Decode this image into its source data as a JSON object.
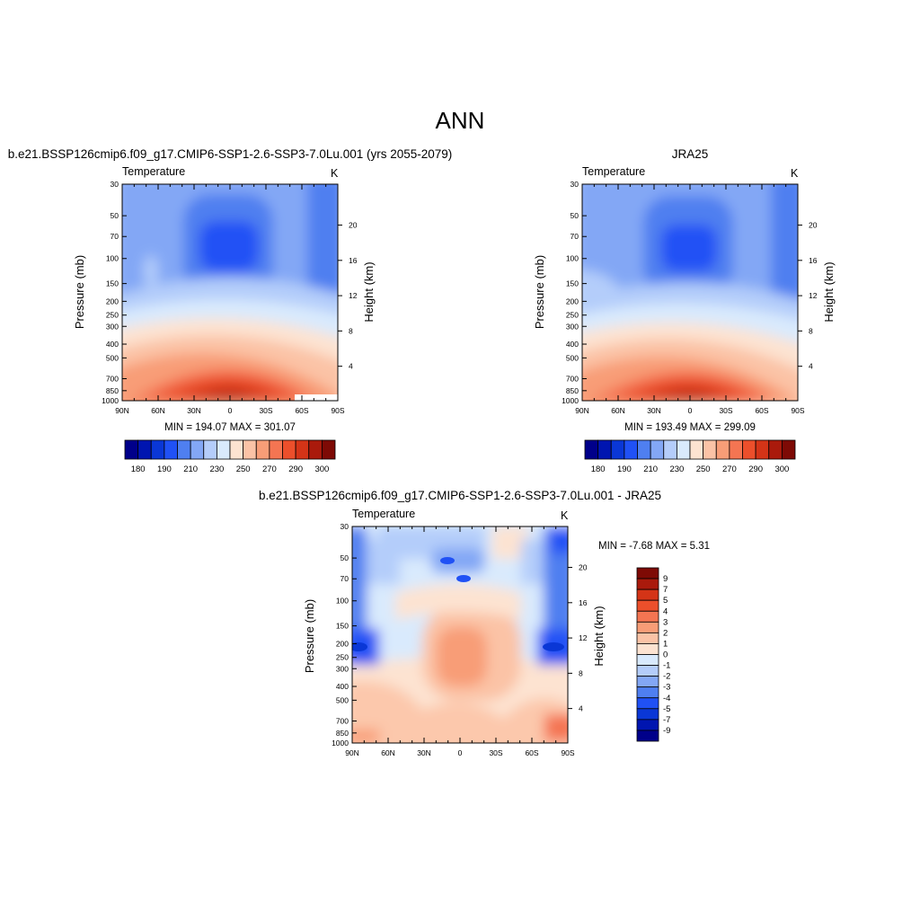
{
  "page": {
    "title": "ANN"
  },
  "panels": [
    {
      "title": "b.e21.BSSP126cmip6.f09_g17.CMIP6-SSP1-2.6-SSP3-7.0Lu.001 (yrs 2055-2079)",
      "variable": "Temperature",
      "units": "K",
      "stats": "MIN = 194.07  MAX = 301.07"
    },
    {
      "title": "JRA25",
      "variable": "Temperature",
      "units": "K",
      "stats": "MIN = 193.49  MAX = 299.09"
    },
    {
      "title": "b.e21.BSSP126cmip6.f09_g17.CMIP6-SSP1-2.6-SSP3-7.0Lu.001 - JRA25",
      "variable": "Temperature",
      "units": "K",
      "stats": "MIN =  -7.68  MAX =   5.31"
    }
  ],
  "axes": {
    "ylabel": "Pressure (mb)",
    "ylabel_right": "Height (km)",
    "pressure_ticks": [
      "30",
      "50",
      "70",
      "100",
      "150",
      "200",
      "250",
      "300",
      "400",
      "500",
      "700",
      "850",
      "1000"
    ],
    "height_ticks": [
      "20",
      "16",
      "12",
      "8",
      "4"
    ],
    "lat_ticks": [
      "90N",
      "60N",
      "30N",
      "0",
      "30S",
      "60S",
      "90S"
    ]
  },
  "colorbars": {
    "temperature_labels": [
      "180",
      "190",
      "210",
      "230",
      "250",
      "270",
      "290",
      "300"
    ],
    "difference_labels": [
      "9",
      "7",
      "5",
      "4",
      "3",
      "2",
      "1",
      "0",
      "-1",
      "-2",
      "-3",
      "-4",
      "-5",
      "-7",
      "-9"
    ]
  },
  "colors": {
    "temperature_scale": [
      "#00008a",
      "#0015b0",
      "#0a37d6",
      "#2051f5",
      "#4f7ff0",
      "#83a7f5",
      "#b4cdfa",
      "#d9eafd",
      "#fde3d1",
      "#fbc3a6",
      "#f89d77",
      "#f47552",
      "#ec4f2b",
      "#d43417",
      "#aa1a0c",
      "#7e0a05"
    ],
    "difference_scale": [
      "#7e0a05",
      "#aa1a0c",
      "#d43417",
      "#ec4f2b",
      "#f47552",
      "#f89d77",
      "#fbc3a6",
      "#fde3d1",
      "#d9eafd",
      "#b4cdfa",
      "#83a7f5",
      "#4f7ff0",
      "#2051f5",
      "#0a37d6",
      "#0015b0",
      "#00008a"
    ]
  },
  "chart_data": [
    {
      "type": "heatmap",
      "title": "b.e21.BSSP126cmip6.f09_g17.CMIP6-SSP1-2.6-SSP3-7.0Lu.001 (yrs 2055-2079)",
      "subtitle": "Temperature",
      "units": "K",
      "xlabel": "",
      "ylabel": "Pressure (mb)",
      "ylabel_right": "Height (km)",
      "x": [
        "90N",
        "60N",
        "30N",
        "0",
        "30S",
        "60S",
        "90S"
      ],
      "y": [
        30,
        50,
        70,
        100,
        150,
        200,
        250,
        300,
        400,
        500,
        700,
        850,
        1000
      ],
      "y_scale": "log",
      "min": 194.07,
      "max": 301.07
    },
    {
      "type": "heatmap",
      "title": "JRA25",
      "subtitle": "Temperature",
      "units": "K",
      "xlabel": "",
      "ylabel": "Pressure (mb)",
      "ylabel_right": "Height (km)",
      "x": [
        "90N",
        "60N",
        "30N",
        "0",
        "30S",
        "60S",
        "90S"
      ],
      "y": [
        30,
        50,
        70,
        100,
        150,
        200,
        250,
        300,
        400,
        500,
        700,
        850,
        1000
      ],
      "y_scale": "log",
      "min": 193.49,
      "max": 299.09
    },
    {
      "type": "heatmap",
      "title": "b.e21.BSSP126cmip6.f09_g17.CMIP6-SSP1-2.6-SSP3-7.0Lu.001 - JRA25",
      "subtitle": "Temperature",
      "units": "K",
      "xlabel": "",
      "ylabel": "Pressure (mb)",
      "ylabel_right": "Height (km)",
      "x": [
        "90N",
        "60N",
        "30N",
        "0",
        "30S",
        "60S",
        "90S"
      ],
      "y": [
        30,
        50,
        70,
        100,
        150,
        200,
        250,
        300,
        400,
        500,
        700,
        850,
        1000
      ],
      "y_scale": "log",
      "min": -7.68,
      "max": 5.31
    }
  ]
}
